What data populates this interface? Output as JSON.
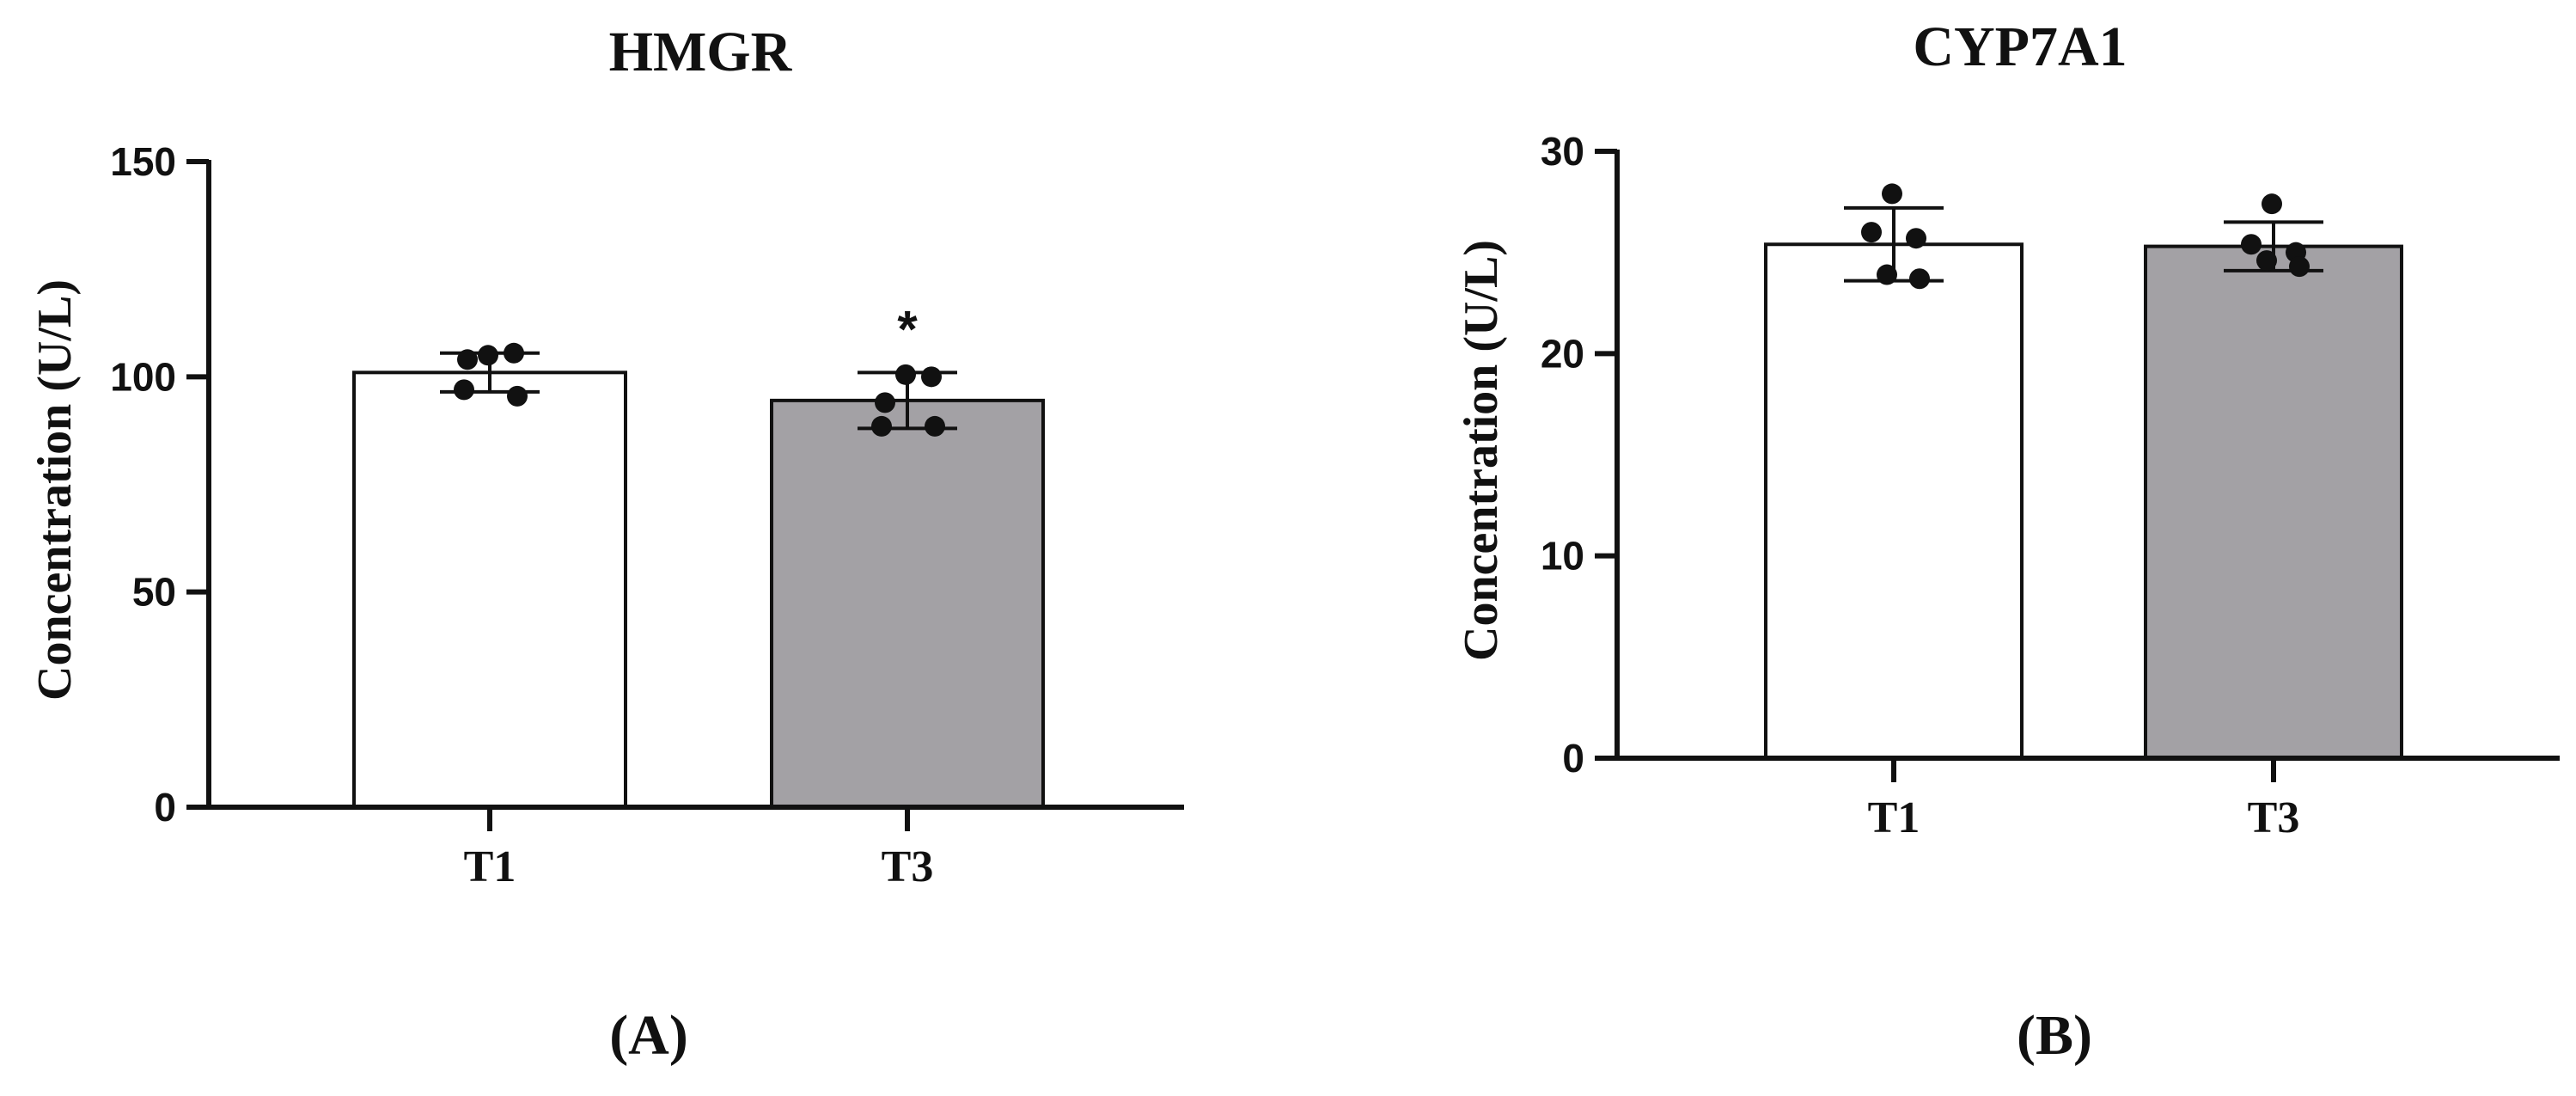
{
  "chart_data": [
    {
      "type": "bar",
      "panel_label": "(A)",
      "title": "HMGR",
      "xlabel": "",
      "ylabel": "Concentration (U/L)",
      "ylim": [
        0,
        150
      ],
      "yticks": [
        0,
        50,
        100,
        150
      ],
      "categories": [
        "T1",
        "T3"
      ],
      "values": [
        101,
        94.5
      ],
      "error": [
        4.5,
        6.5
      ],
      "points": [
        [
          105,
          105.5,
          104,
          97,
          95.5
        ],
        [
          100.5,
          100,
          94,
          88.5,
          88.5
        ]
      ],
      "annotations": [
        "",
        "*"
      ],
      "bar_colors": [
        "#ffffff",
        "#a3a1a5"
      ],
      "grid": false
    },
    {
      "type": "bar",
      "panel_label": "(B)",
      "title": "CYP7A1",
      "xlabel": "",
      "ylabel": "Concentration (U/L)",
      "ylim": [
        0,
        30
      ],
      "yticks": [
        0,
        10,
        20,
        30
      ],
      "categories": [
        "T1",
        "T3"
      ],
      "values": [
        25.4,
        25.3
      ],
      "error": [
        1.8,
        1.2
      ],
      "points": [
        [
          27.9,
          26.0,
          25.7,
          23.9,
          23.7
        ],
        [
          27.4,
          25.4,
          25.0,
          24.6,
          24.3
        ]
      ],
      "annotations": [
        "",
        ""
      ],
      "bar_colors": [
        "#ffffff",
        "#a3a1a5"
      ],
      "grid": false
    }
  ]
}
